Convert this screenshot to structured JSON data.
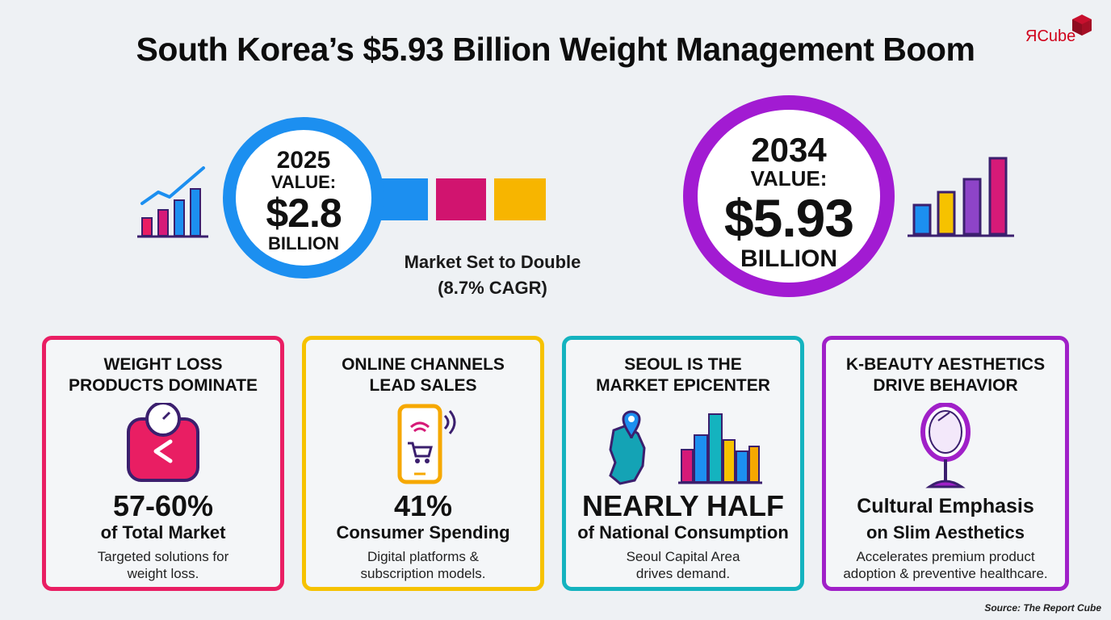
{
  "header": {
    "title": "South Korea’s $5.93 Billion Weight Management Boom",
    "logo_text": "ЯCube"
  },
  "left_circle": {
    "year": "2025",
    "label": "VALUE:",
    "value": "$2.8",
    "unit": "BILLION",
    "color": "#1c8ff0"
  },
  "right_circle": {
    "year": "2034",
    "label": "VALUE:",
    "value": "$5.93",
    "unit": "BILLION",
    "color": "#a21bd2"
  },
  "growth": {
    "line1": "Market Set to Double",
    "line2": "(8.7% CAGR)"
  },
  "band_colors": [
    "#1c8ff0",
    "#d1146f",
    "#f7b500"
  ],
  "cards": [
    {
      "title_line1": "WEIGHT LOSS",
      "title_line2": "PRODUCTS DOMINATE",
      "icon": "scale-icon",
      "stat": "57-60%",
      "sub": "of Total Market",
      "desc_line1": "Targeted solutions for",
      "desc_line2": "weight loss.",
      "color": "#e91e63"
    },
    {
      "title_line1": "ONLINE CHANNELS",
      "title_line2": "LEAD SALES",
      "icon": "smartphone-cart-icon",
      "stat": "41%",
      "sub": "Consumer Spending",
      "desc_line1": "Digital platforms &",
      "desc_line2": "subscription models.",
      "color": "#f6c200"
    },
    {
      "title_line1": "SEOUL IS THE",
      "title_line2": "MARKET EPICENTER",
      "icon": "map-city-icon",
      "stat": "NEARLY HALF",
      "sub": "of National Consumption",
      "desc_line1": "Seoul Capital Area",
      "desc_line2": "drives demand.",
      "color": "#14b3bf"
    },
    {
      "title_line1": "K-BEAUTY AESTHETICS",
      "title_line2": "DRIVE BEHAVIOR",
      "icon": "mirror-icon",
      "stat": "Cultural Emphasis",
      "sub": "on Slim Aesthetics",
      "desc_line1": "Accelerates premium product",
      "desc_line2": "adoption & preventive healthcare.",
      "color": "#a020c8"
    }
  ],
  "footer": {
    "source": "Source: The Report Cube"
  }
}
